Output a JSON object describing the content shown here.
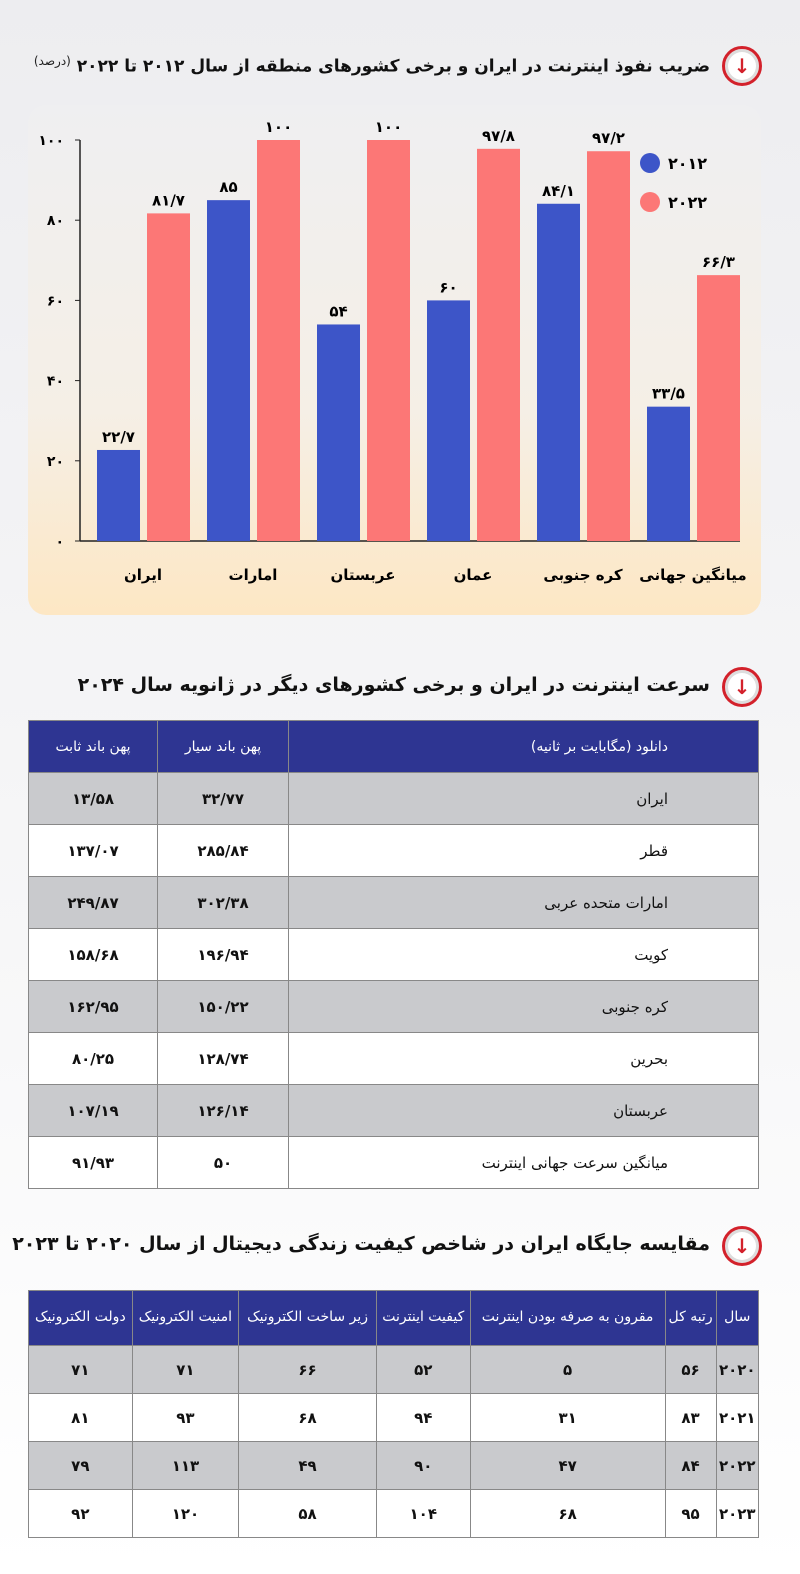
{
  "section1": {
    "title": "ضریب نفوذ اینترنت در ایران و برخی کشورهای منطقه از سال ۲۰۱۲ تا ۲۰۲۲",
    "unit": "(درصد)"
  },
  "chart_data": {
    "type": "bar",
    "title": "ضریب نفوذ اینترنت در ایران و برخی کشورهای منطقه از سال ۲۰۱۲ تا ۲۰۲۲ (درصد)",
    "categories": [
      "ایران",
      "امارات",
      "عربستان",
      "عمان",
      "کره جنوبی",
      "میانگین جهانی"
    ],
    "series": [
      {
        "name": "۲۰۱۲",
        "color": "#3d55c8",
        "values": [
          22.7,
          85,
          54,
          60,
          84.1,
          33.5
        ],
        "labels": [
          "۲۲/۷",
          "۸۵",
          "۵۴",
          "۶۰",
          "۸۴/۱",
          "۳۳/۵"
        ]
      },
      {
        "name": "۲۰۲۲",
        "color": "#fc7776",
        "values": [
          81.7,
          100,
          100,
          97.8,
          97.2,
          66.3
        ],
        "labels": [
          "۸۱/۷",
          "۱۰۰",
          "۱۰۰",
          "۹۷/۸",
          "۹۷/۲",
          "۶۶/۳"
        ]
      }
    ],
    "ylim": [
      0,
      100
    ],
    "yticks": [
      0,
      20,
      40,
      60,
      80,
      100
    ],
    "ytick_labels": [
      "۰",
      "۲۰",
      "۴۰",
      "۶۰",
      "۸۰",
      "۱۰۰"
    ],
    "legend": "top-right",
    "grid": false
  },
  "section2": {
    "title": "سرعت اینترنت در ایران و برخی کشورهای دیگر در ژانویه سال ۲۰۲۴",
    "headers": [
      "دانلود (مگابایت بر ثانیه)",
      "پهن باند سیار",
      "پهن باند ثابت"
    ],
    "rows": [
      [
        "ایران",
        "۳۲/۷۷",
        "۱۳/۵۸"
      ],
      [
        "قطر",
        "۲۸۵/۸۴",
        "۱۳۷/۰۷"
      ],
      [
        "امارات متحده عربی",
        "۳۰۲/۳۸",
        "۲۴۹/۸۷"
      ],
      [
        "کویت",
        "۱۹۶/۹۴",
        "۱۵۸/۶۸"
      ],
      [
        "کره جنوبی",
        "۱۵۰/۲۲",
        "۱۶۲/۹۵"
      ],
      [
        "بحرین",
        "۱۲۸/۷۴",
        "۸۰/۲۵"
      ],
      [
        "عربستان",
        "۱۲۶/۱۴",
        "۱۰۷/۱۹"
      ],
      [
        "میانگین سرعت جهانی اینترنت",
        "۵۰",
        "۹۱/۹۳"
      ]
    ]
  },
  "section3": {
    "title": "مقایسه جایگاه ایران در شاخص کیفیت زندگی دیجیتال از سال ۲۰۲۰ تا ۲۰۲۳",
    "headers": [
      "سال",
      "رتبه کل",
      "مقرون به صرفه بودن اینترنت",
      "کیفیت اینترنت",
      "زیر ساخت الکترونیک",
      "امنیت الکترونیک",
      "دولت الکترونیک"
    ],
    "rows": [
      [
        "۲۰۲۰",
        "۵۶",
        "۵",
        "۵۲",
        "۶۶",
        "۷۱",
        "۷۱"
      ],
      [
        "۲۰۲۱",
        "۸۳",
        "۳۱",
        "۹۴",
        "۶۸",
        "۹۳",
        "۸۱"
      ],
      [
        "۲۰۲۲",
        "۸۴",
        "۴۷",
        "۹۰",
        "۴۹",
        "۱۱۳",
        "۷۹"
      ],
      [
        "۲۰۲۳",
        "۹۵",
        "۶۸",
        "۱۰۴",
        "۵۸",
        "۱۲۰",
        "۹۲"
      ]
    ]
  }
}
